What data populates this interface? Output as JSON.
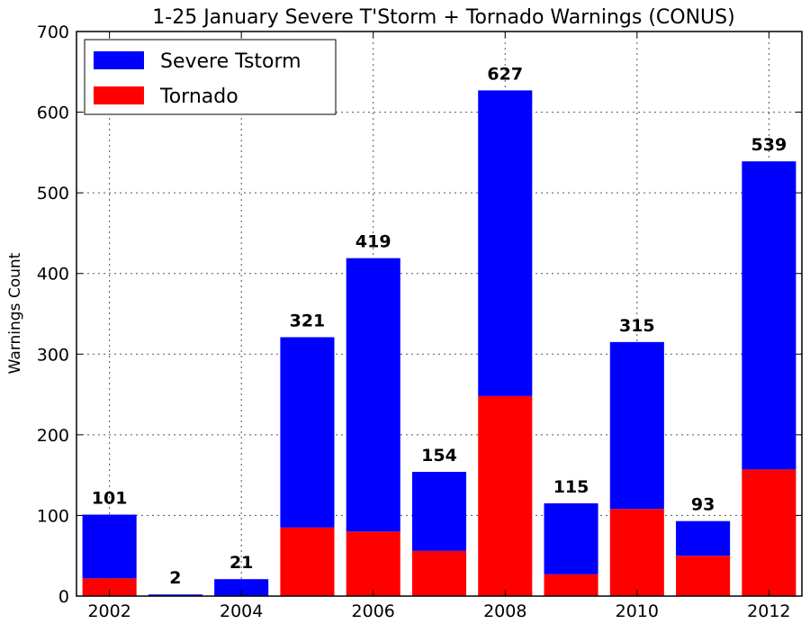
{
  "chart_data": {
    "type": "bar",
    "stacked": true,
    "title": "1-25 January Severe T'Storm + Tornado Warnings (CONUS)",
    "xlabel": "",
    "ylabel": "Warnings Count",
    "categories": [
      "2002",
      "2003",
      "2004",
      "2005",
      "2006",
      "2007",
      "2008",
      "2009",
      "2010",
      "2011",
      "2012"
    ],
    "x_tick_labels": [
      "2002",
      "2004",
      "2006",
      "2008",
      "2010",
      "2012"
    ],
    "y_ticks": [
      0,
      100,
      200,
      300,
      400,
      500,
      600,
      700
    ],
    "ylim": [
      0,
      700
    ],
    "grid": true,
    "legend_position": "top-left",
    "totals": [
      101,
      2,
      21,
      321,
      419,
      154,
      627,
      115,
      315,
      93,
      539
    ],
    "series": [
      {
        "name": "Tornado",
        "color": "#ff0000",
        "values": [
          22,
          0,
          0,
          85,
          80,
          56,
          248,
          27,
          108,
          50,
          157
        ]
      },
      {
        "name": "Severe Tstorm",
        "color": "#0000ff",
        "values": [
          79,
          2,
          21,
          236,
          339,
          98,
          379,
          88,
          207,
          43,
          382
        ]
      }
    ],
    "legend": [
      "Severe Tstorm",
      "Tornado"
    ]
  }
}
